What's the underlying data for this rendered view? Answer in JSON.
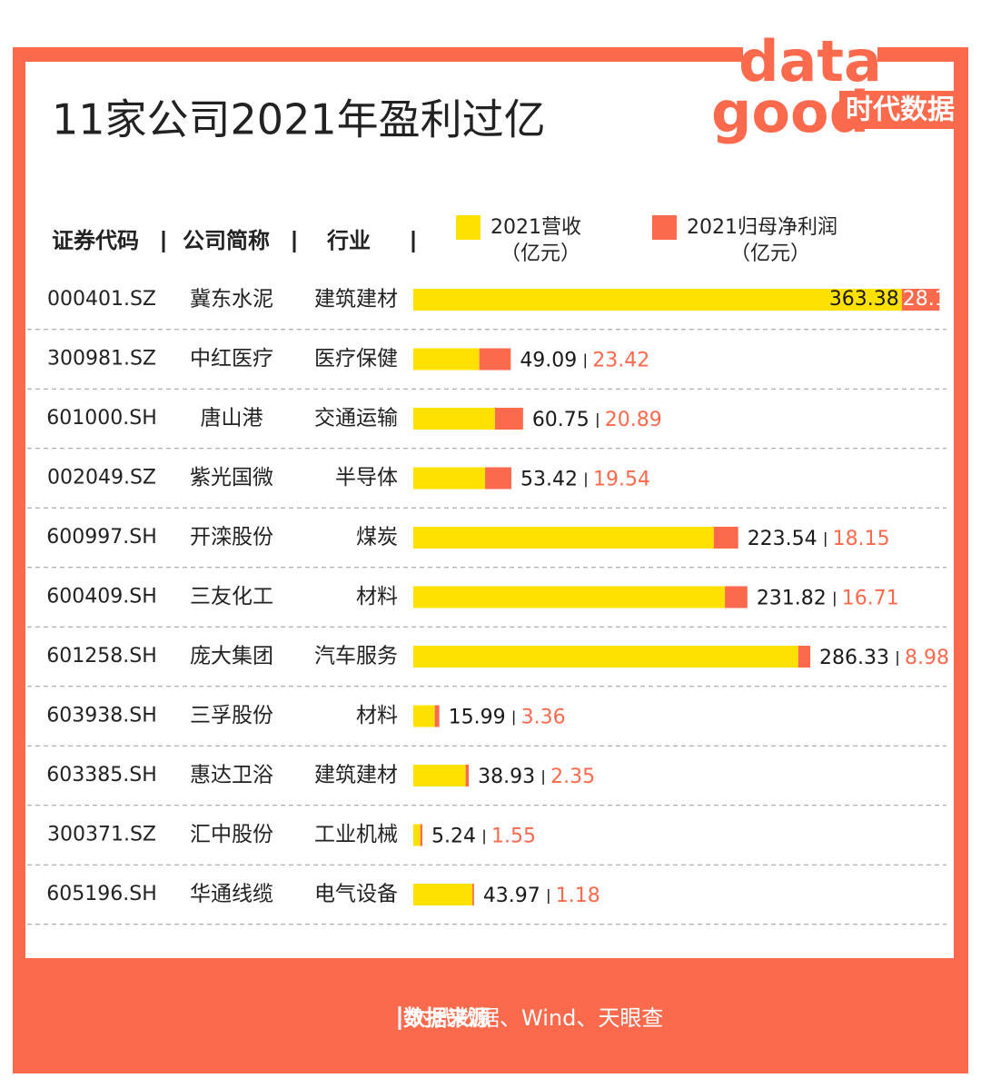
{
  "logo": {
    "wordmark": [
      "data",
      "good"
    ],
    "label": "时代数据"
  },
  "chart_data": {
    "type": "bar",
    "stacked": true,
    "orientation": "horizontal",
    "title": "11家公司2021年盈利过亿",
    "columns": [
      "证券代码",
      "公司简称",
      "行业"
    ],
    "codes": [
      "000401.SZ",
      "300981.SZ",
      "601000.SH",
      "002049.SZ",
      "600997.SH",
      "600409.SH",
      "601258.SH",
      "603938.SH",
      "603385.SH",
      "300371.SZ",
      "605196.SH"
    ],
    "categories": [
      "冀东水泥",
      "中红医疗",
      "唐山港",
      "紫光国微",
      "开滦股份",
      "三友化工",
      "庞大集团",
      "三孚股份",
      "惠达卫浴",
      "汇中股份",
      "华通线缆"
    ],
    "industries": [
      "建筑建材",
      "医疗保健",
      "交通运输",
      "半导体",
      "煤炭",
      "材料",
      "汽车服务",
      "材料",
      "建筑建材",
      "工业机械",
      "电气设备"
    ],
    "series": [
      {
        "name": "2021营收",
        "unit": "（亿元）",
        "color": "#ffe100",
        "label_color": "#1a1a1a",
        "values": [
          363.38,
          49.09,
          60.75,
          53.42,
          223.54,
          231.82,
          286.33,
          15.99,
          38.93,
          5.24,
          43.97
        ]
      },
      {
        "name": "2021归母净利润",
        "unit": "（亿元）",
        "color": "#fb6a4c",
        "label_color": "#fb6a4c",
        "values": [
          28.1,
          23.42,
          20.89,
          19.54,
          18.15,
          16.71,
          8.98,
          3.36,
          2.35,
          1.55,
          1.18
        ]
      }
    ]
  },
  "source": {
    "label": "数据来源",
    "text": "时代数据、Wind、天眼查"
  }
}
